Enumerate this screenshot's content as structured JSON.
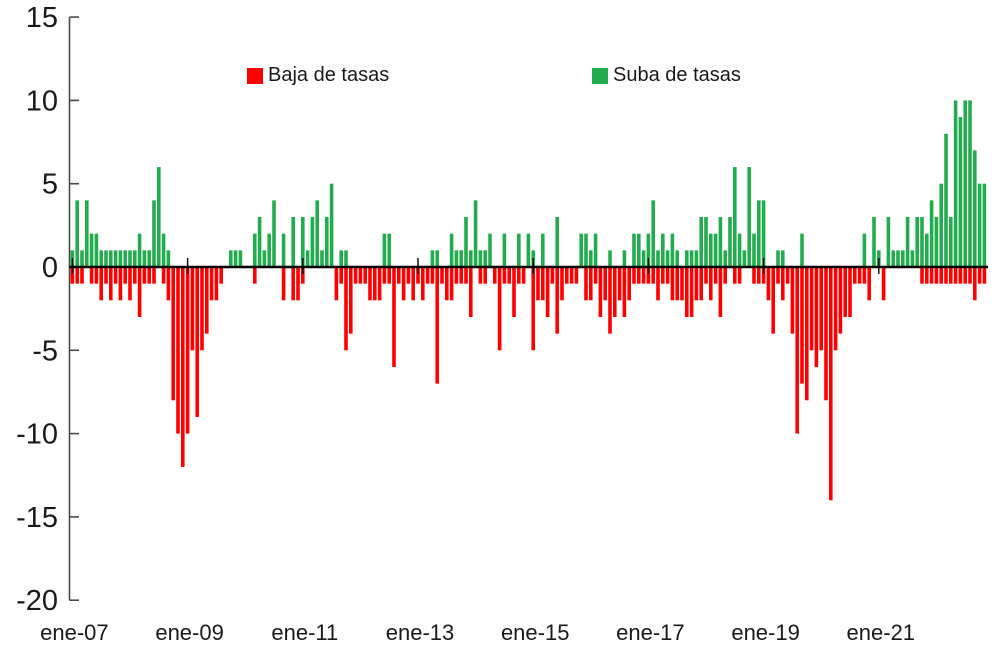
{
  "legend": {
    "cuts_label": "Baja de tasas",
    "hikes_label": "Suba de tasas"
  },
  "colors": {
    "hikes_green": "#22ac4e",
    "cuts_red": "#fe0000",
    "axis": "#4a4a4a",
    "zero_line": "#000000",
    "text": "#1a1a1a",
    "background": "#ffffff"
  },
  "chart_data": {
    "type": "bar",
    "title": "",
    "xlabel": "",
    "ylabel": "",
    "ylim": [
      -20,
      15
    ],
    "grid": false,
    "legend_position": "top-inside",
    "y_ticks": [
      15,
      10,
      5,
      0,
      -5,
      -10,
      -15,
      -20
    ],
    "x_tick_labels": [
      "ene-07",
      "ene-09",
      "ene-11",
      "ene-13",
      "ene-15",
      "ene-17",
      "ene-19",
      "ene-21"
    ],
    "x_tick_month_indices": [
      0,
      24,
      48,
      72,
      96,
      120,
      144,
      168
    ],
    "x_start_month": "ene-07",
    "x_end_month": "nov-22",
    "months_per_bar": 1,
    "series": [
      {
        "name": "Suba de tasas",
        "color": "#22ac4e",
        "values": [
          1,
          4,
          1,
          4,
          2,
          2,
          1,
          1,
          1,
          1,
          1,
          1,
          1,
          1,
          2,
          1,
          1,
          4,
          6,
          2,
          1,
          0,
          0,
          0,
          0,
          0,
          0,
          0,
          0,
          0,
          0,
          0,
          0,
          1,
          1,
          1,
          0,
          0,
          2,
          3,
          1,
          2,
          4,
          0,
          2,
          0,
          3,
          0,
          3,
          1,
          3,
          4,
          1,
          3,
          5,
          0,
          1,
          1,
          0,
          0,
          0,
          0,
          0,
          0,
          0,
          2,
          2,
          0,
          0,
          0,
          0,
          0,
          0,
          0,
          0,
          1,
          1,
          0,
          0,
          2,
          1,
          1,
          3,
          1,
          4,
          1,
          1,
          2,
          0,
          0,
          2,
          0,
          0,
          2,
          0,
          2,
          1,
          0,
          2,
          0,
          0,
          3,
          0,
          0,
          0,
          0,
          2,
          2,
          1,
          2,
          0,
          0,
          1,
          0,
          0,
          1,
          0,
          2,
          2,
          1,
          2,
          4,
          1,
          2,
          1,
          2,
          1,
          0,
          1,
          1,
          1,
          3,
          3,
          2,
          2,
          3,
          1,
          3,
          6,
          2,
          1,
          6,
          2,
          4,
          4,
          0,
          0,
          1,
          1,
          0,
          0,
          0,
          2,
          0,
          0,
          0,
          0,
          0,
          0,
          0,
          0,
          0,
          0,
          0,
          0,
          2,
          0,
          3,
          1,
          0,
          3,
          1,
          1,
          1,
          3,
          1,
          3,
          3,
          2,
          4,
          3,
          5,
          8,
          3,
          10,
          9,
          10,
          10,
          7,
          5,
          5
        ]
      },
      {
        "name": "Baja de tasas",
        "color": "#fe0000",
        "values": [
          -1,
          -1,
          -1,
          0,
          -1,
          -1,
          -2,
          -1,
          -2,
          -1,
          -2,
          -1,
          -2,
          -1,
          -3,
          -1,
          -1,
          -1,
          0,
          -1,
          -2,
          -8,
          -10,
          -12,
          -10,
          -5,
          -9,
          -5,
          -4,
          -2,
          -2,
          -1,
          0,
          0,
          0,
          0,
          0,
          0,
          -1,
          0,
          0,
          0,
          0,
          0,
          -2,
          0,
          -2,
          -2,
          -1,
          0,
          0,
          0,
          0,
          0,
          0,
          -2,
          -1,
          -5,
          -4,
          -1,
          -1,
          -1,
          -2,
          -2,
          -2,
          -1,
          -1,
          -6,
          -1,
          -2,
          -1,
          -2,
          -1,
          -2,
          -1,
          -1,
          -7,
          -1,
          -2,
          -2,
          -1,
          -1,
          -1,
          -3,
          0,
          -1,
          -1,
          0,
          -1,
          -5,
          -1,
          -1,
          -3,
          -1,
          -1,
          0,
          -5,
          -2,
          -2,
          -3,
          -1,
          -4,
          -2,
          -1,
          -1,
          -1,
          0,
          -2,
          -2,
          -1,
          -3,
          -2,
          -4,
          -3,
          -2,
          -3,
          -2,
          -1,
          -1,
          -1,
          -1,
          -1,
          -2,
          -1,
          -1,
          -2,
          -2,
          -2,
          -3,
          -3,
          -2,
          -2,
          -1,
          -2,
          -1,
          -3,
          -1,
          0,
          -1,
          -1,
          0,
          0,
          -1,
          -1,
          -1,
          -2,
          -4,
          -1,
          -2,
          -1,
          -4,
          -10,
          -7,
          -8,
          -5,
          -6,
          -5,
          -8,
          -14,
          -5,
          -4,
          -3,
          -3,
          -1,
          -1,
          -1,
          -2,
          0,
          0,
          -2,
          0,
          0,
          0,
          0,
          0,
          0,
          0,
          -1,
          -1,
          -1,
          -1,
          -1,
          -1,
          -1,
          -1,
          -1,
          -1,
          -1,
          -2,
          -1,
          -1
        ]
      }
    ]
  }
}
